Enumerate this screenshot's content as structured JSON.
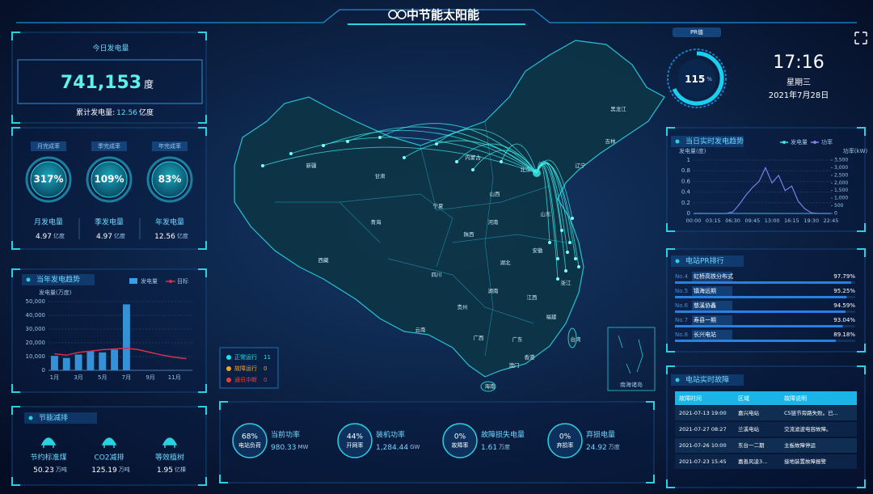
{
  "header": {
    "title": "中节能太阳能"
  },
  "today": {
    "title": "今日发电量",
    "value": "741,153",
    "unit": "度",
    "total_label": "累计发电量:",
    "total_value": "12.56",
    "total_unit": "亿度"
  },
  "completion": {
    "gauges": [
      {
        "label": "月完成率",
        "value": "317%"
      },
      {
        "label": "季完成率",
        "value": "109%"
      },
      {
        "label": "年完成率",
        "value": "83%"
      }
    ],
    "stats": [
      {
        "label": "月发电量",
        "value": "4.97",
        "unit": "亿度"
      },
      {
        "label": "季发电量",
        "value": "4.97",
        "unit": "亿度"
      },
      {
        "label": "年发电量",
        "value": "12.56",
        "unit": "亿度"
      }
    ]
  },
  "yearly_trend": {
    "type": "bar",
    "title": "当年发电趋势",
    "y_label": "发电量(万度)",
    "categories": [
      "1月",
      null,
      "3月",
      null,
      "5月",
      null,
      "7月",
      null,
      "9月",
      null,
      "11月",
      null
    ],
    "series": [
      {
        "name": "发电量",
        "color": "#3a9ee8",
        "type": "bar",
        "values": [
          10500,
          9000,
          11500,
          14000,
          13000,
          15000,
          48000,
          null,
          null,
          null,
          null,
          null
        ]
      },
      {
        "name": "目标",
        "color": "#d8304a",
        "type": "line",
        "values": [
          12000,
          11000,
          13000,
          14000,
          15000,
          15500,
          16000,
          15000,
          13000,
          11000,
          9500,
          8500
        ]
      }
    ],
    "ylim": [
      0,
      50000
    ],
    "yticks": [
      0,
      {
        "value": 10000,
        "label": "10,000"
      },
      {
        "value": 20000,
        "label": "20,000"
      },
      {
        "value": 30000,
        "label": "30,000"
      },
      {
        "value": 40000,
        "label": "40,000"
      },
      {
        "value": 50000,
        "label": "50,000"
      }
    ],
    "grid": true
  },
  "energy": {
    "title": "节能减排",
    "items": [
      {
        "label": "节约标准煤",
        "value": "50.23",
        "unit": "万吨"
      },
      {
        "label": "CO2减排",
        "value": "125.19",
        "unit": "万吨"
      },
      {
        "label": "等效植树",
        "value": "1.95",
        "unit": "亿棵"
      }
    ]
  },
  "map": {
    "provinces": [
      "新疆",
      "西藏",
      "青海",
      "甘肃",
      "内蒙古",
      "黑龙江",
      "吉林",
      "辽宁",
      "北京",
      "山东",
      "河南",
      "陕西",
      "四川",
      "云南",
      "贵州",
      "广西",
      "广东",
      "湖南",
      "湖北",
      "江西",
      "福建",
      "浙江",
      "安徽",
      "台湾",
      "海南",
      "香港",
      "澳门",
      "宁夏",
      "山西"
    ],
    "legend": [
      {
        "label": "正常运行",
        "count": "11",
        "color": "#1de3e3"
      },
      {
        "label": "故障运行",
        "count": "0",
        "color": "#f5a623"
      },
      {
        "label": "通讯中断",
        "count": "0",
        "color": "#e8413a"
      }
    ],
    "inset": "南海诸岛"
  },
  "bottom_stats": [
    {
      "percent": "68%",
      "percent_label": "电站负荷",
      "label": "当前功率",
      "value": "980.33",
      "unit": "MW"
    },
    {
      "percent": "44%",
      "percent_label": "开网率",
      "label": "装机功率",
      "value": "1,284.44",
      "unit": "GW"
    },
    {
      "percent": "0%",
      "percent_label": "故障率",
      "label": "故障损失电量",
      "value": "1.61",
      "unit": "万度"
    },
    {
      "percent": "0%",
      "percent_label": "弃损率",
      "label": "弃损电量",
      "value": "24.92",
      "unit": "万度"
    }
  ],
  "pr": {
    "title": "PR值",
    "value": "115",
    "unit": "%"
  },
  "clock": {
    "time": "17:16",
    "weekday": "星期三",
    "date": "2021年7月28日"
  },
  "daily_trend": {
    "type": "line",
    "title": "当日实时发电趋势",
    "y_label": "发电量(度)",
    "y2_label": "功率(kW)",
    "categories": [
      "00:00",
      null,
      null,
      "03:15",
      null,
      null,
      "06:30",
      null,
      null,
      "09:45",
      null,
      null,
      "13:00",
      null,
      null,
      "16:15",
      null,
      null,
      "19:30",
      null,
      null,
      "22:45"
    ],
    "series": [
      {
        "name": "发电量",
        "color": "#3ee0f0",
        "values": [
          0,
          0,
          0,
          0,
          0,
          0,
          0,
          0,
          0,
          0,
          0,
          0,
          0,
          0,
          0,
          0,
          0,
          0,
          0,
          0,
          0,
          0
        ]
      },
      {
        "name": "功率",
        "color": "#7b7fe8",
        "axis": "y2",
        "values": [
          0,
          0,
          0,
          0,
          0,
          0,
          100,
          600,
          1200,
          1700,
          2100,
          3000,
          2000,
          2500,
          1500,
          1800,
          800,
          300,
          50,
          0,
          0,
          0
        ]
      }
    ],
    "ylim": [
      0,
      1
    ],
    "yticks": [
      0,
      0.2,
      0.4,
      0.6,
      0.8,
      1
    ],
    "y2lim": [
      0,
      3500
    ],
    "y2ticks": [
      0,
      500,
      {
        "value": 1000,
        "label": "1,000"
      },
      {
        "value": 1500,
        "label": "1,500"
      },
      {
        "value": 2000,
        "label": "2,000"
      },
      {
        "value": 2500,
        "label": "2,500"
      },
      {
        "value": 3000,
        "label": "3,000"
      },
      {
        "value": 3500,
        "label": "3,500"
      }
    ]
  },
  "pr_ranking": {
    "type": "bar",
    "title": "电站PR排行",
    "xlim": [
      0,
      100
    ],
    "ranks": [
      "No.4",
      "No.5",
      "No.6",
      "No.7",
      "No.8"
    ],
    "categories": [
      "虹桥高铁分布式",
      "镇海远期",
      "慈溪协鑫",
      "寿县一期",
      "长兴电站"
    ],
    "values": [
      97.79,
      95.25,
      94.59,
      93.04,
      89.18
    ],
    "value_labels": [
      "97.79%",
      "95.25%",
      "94.59%",
      "93.04%",
      "89.18%"
    ],
    "color": "#2a7fe0"
  },
  "faults": {
    "title": "电站实时故障",
    "columns": [
      "故障时间",
      "区域",
      "故障说明"
    ],
    "rows": [
      [
        "2021-07-13 19:00",
        "嘉兴电站",
        "C5链节旁路失败。已..."
      ],
      [
        "2021-07-27 08:27",
        "兰溪电站",
        "交流滤波电容故障。"
      ],
      [
        "2021-07-26 10:00",
        "东台一二期",
        "主板故障停运"
      ],
      [
        "2021-07-23 15:45",
        "嘉善风凌3...",
        "接地装置故障报警"
      ]
    ]
  }
}
